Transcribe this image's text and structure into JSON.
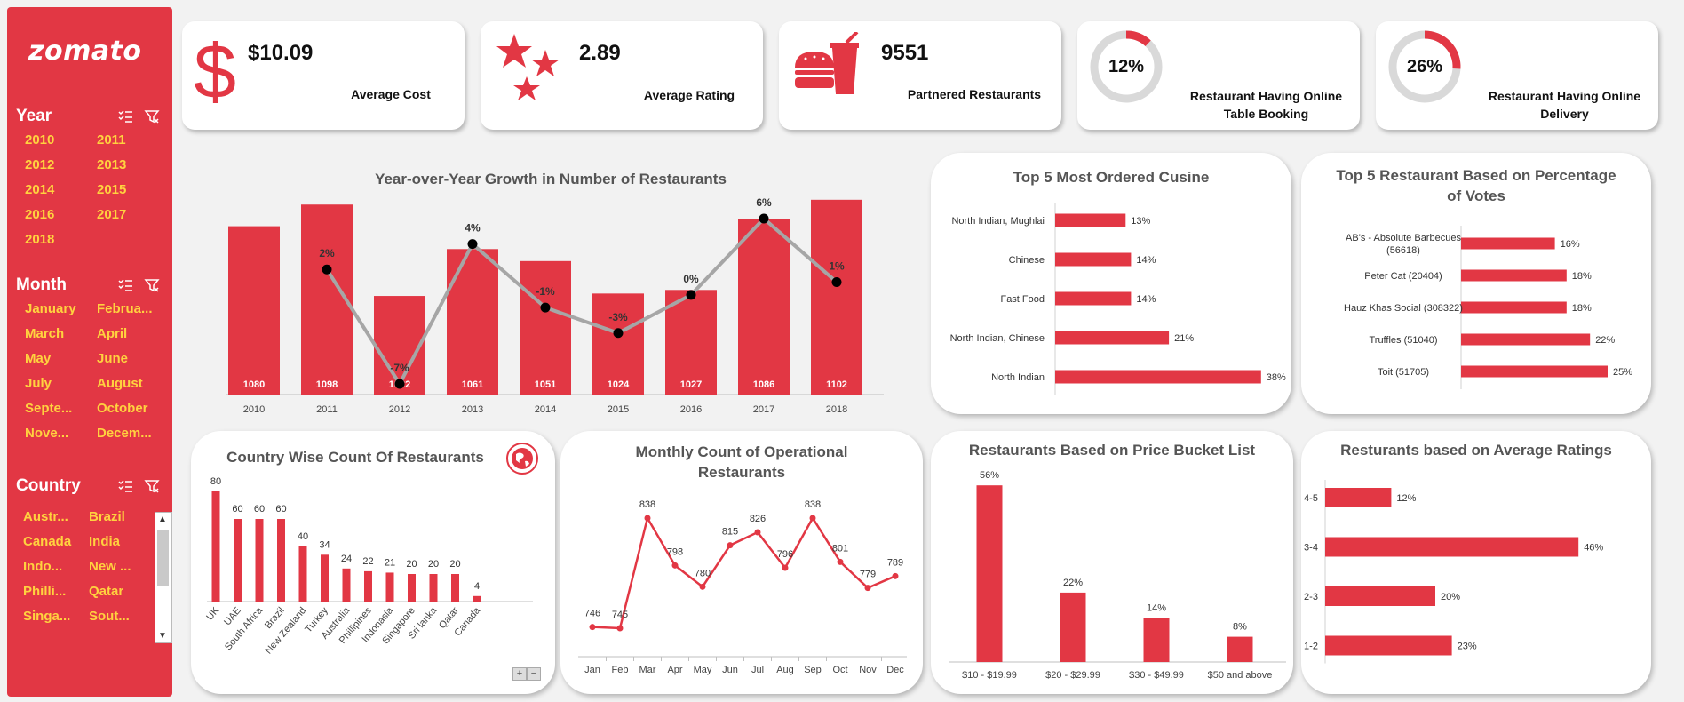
{
  "app": {
    "logo": "zomato"
  },
  "slicers": {
    "year": {
      "title": "Year",
      "items": [
        "2010",
        "2011",
        "2012",
        "2013",
        "2014",
        "2015",
        "2016",
        "2017",
        "2018"
      ]
    },
    "month": {
      "title": "Month",
      "items": [
        "January",
        "Februa...",
        "March",
        "April",
        "May",
        "June",
        "July",
        "August",
        "Septe...",
        "October",
        "Nove...",
        "Decem..."
      ]
    },
    "country": {
      "title": "Country",
      "items": [
        "Austr...",
        "Brazil",
        "Canada",
        "India",
        "Indo...",
        "New ...",
        "Philli...",
        "Qatar",
        "Singa...",
        "Sout..."
      ]
    }
  },
  "kpis": {
    "avg_cost": {
      "value": "$10.09",
      "label": "Average Cost"
    },
    "avg_rating": {
      "value": "2.89",
      "label": "Average Rating"
    },
    "partnered": {
      "value": "9551",
      "label": "Partnered Restaurants"
    },
    "table_booking": {
      "value": "12%",
      "fraction": 0.12,
      "label_line1": "Restaurant Having Online",
      "label_line2": "Table Booking"
    },
    "online_delivery": {
      "value": "26%",
      "fraction": 0.26,
      "label_line1": "Restaurant Having Online",
      "label_line2": "Delivery"
    }
  },
  "colors": {
    "accent": "#e23744",
    "line": "#a6a6a6",
    "gold": "#ffd23f"
  },
  "chart_data": [
    {
      "id": "yoy",
      "type": "bar",
      "title": "Year-over-Year Growth in Number of Restaurants",
      "categories": [
        "2010",
        "2011",
        "2012",
        "2013",
        "2014",
        "2015",
        "2016",
        "2017",
        "2018"
      ],
      "series": [
        {
          "values": [
            1080,
            1098,
            1022,
            1061,
            1051,
            1024,
            1027,
            1086,
            1102
          ]
        },
        {
          "type": "line",
          "values": [
            null,
            2,
            -7,
            4,
            -1,
            -3,
            0,
            6,
            1
          ],
          "labels": [
            "",
            "2%",
            "-7%",
            "4%",
            "-1%",
            "-3%",
            "0%",
            "6%",
            "1%"
          ]
        }
      ],
      "grid": false
    },
    {
      "id": "cuisine",
      "type": "bar",
      "orientation": "horizontal",
      "title": "Top 5 Most Ordered Cusine",
      "categories": [
        "North Indian, Mughlai",
        "Chinese",
        "Fast Food",
        "North Indian, Chinese",
        "North Indian"
      ],
      "values": [
        13,
        14,
        14,
        21,
        38
      ],
      "labels": [
        "13%",
        "14%",
        "14%",
        "21%",
        "38%"
      ]
    },
    {
      "id": "votes",
      "type": "bar",
      "orientation": "horizontal",
      "title_line1": "Top 5 Restaurant Based on Percentage",
      "title_line2": "of Votes",
      "categories": [
        [
          "AB's - Absolute Barbecues",
          "(56618)"
        ],
        [
          "Peter Cat (20404)"
        ],
        [
          "Hauz Khas Social (308322)"
        ],
        [
          "Truffles (51040)"
        ],
        [
          "Toit (51705)"
        ]
      ],
      "values": [
        16,
        18,
        18,
        22,
        25
      ],
      "labels": [
        "16%",
        "18%",
        "18%",
        "22%",
        "25%"
      ]
    },
    {
      "id": "country",
      "type": "bar",
      "title": "Country  Wise Count Of Restaurants",
      "categories": [
        "UK",
        "UAE",
        "South Africa",
        "Brazil",
        "New Zealand",
        "Turkey",
        "Australia",
        "Phillipines",
        "Indonasia",
        "Singapore",
        "Sri lanka",
        "Qatar",
        "Canada"
      ],
      "values": [
        80,
        60,
        60,
        60,
        40,
        34,
        24,
        22,
        21,
        20,
        20,
        20,
        4
      ]
    },
    {
      "id": "monthly",
      "type": "line",
      "title_line1": "Monthly Count of Operational",
      "title_line2": "Restaurants",
      "categories": [
        "Jan",
        "Feb",
        "Mar",
        "Apr",
        "May",
        "Jun",
        "Jul",
        "Aug",
        "Sep",
        "Oct",
        "Nov",
        "Dec"
      ],
      "values": [
        746,
        745,
        838,
        798,
        780,
        815,
        826,
        796,
        838,
        801,
        779,
        789
      ]
    },
    {
      "id": "price",
      "type": "bar",
      "title": "Restaurants Based on Price Bucket List",
      "categories": [
        "$10 - $19.99",
        "$20 - $29.99",
        "$30 - $49.99",
        "$50 and above"
      ],
      "values": [
        56,
        22,
        14,
        8
      ],
      "labels": [
        "56%",
        "22%",
        "14%",
        "8%"
      ]
    },
    {
      "id": "ratings",
      "type": "bar",
      "orientation": "horizontal",
      "title": "Resturants based on Average Ratings",
      "categories": [
        "4-5",
        "3-4",
        "2-3",
        "1-2"
      ],
      "values": [
        12,
        46,
        20,
        23
      ],
      "labels": [
        "12%",
        "46%",
        "20%",
        "23%"
      ]
    }
  ]
}
